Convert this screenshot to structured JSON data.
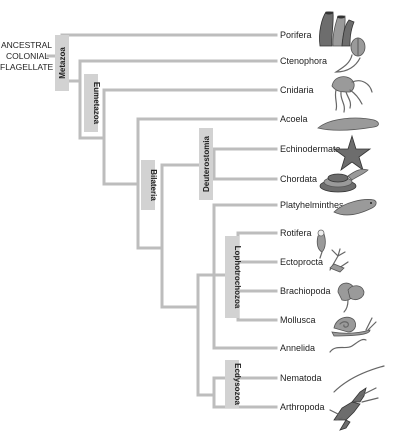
{
  "root": {
    "lines": [
      "ANCESTRAL",
      "COLONIAL",
      "FLAGELLATE"
    ]
  },
  "clades": {
    "metazoa": "Metazoa",
    "eumetazoa": "Eumetazoa",
    "bilateria": "Bilateria",
    "deuterostomia": "Deuterostomia",
    "lophotrochozoa": "Lophotrochozoa",
    "ecdysozoa": "Ecdysozoa"
  },
  "taxa": [
    {
      "label": "Porifera",
      "icon": "sponge-icon"
    },
    {
      "label": "Ctenophora",
      "icon": "comb-jelly-icon"
    },
    {
      "label": "Cnidaria",
      "icon": "jellyfish-icon"
    },
    {
      "label": "Acoela",
      "icon": "acoel-worm-icon"
    },
    {
      "label": "Echinodermata",
      "icon": "sea-star-icon"
    },
    {
      "label": "Chordata",
      "icon": "snake-icon"
    },
    {
      "label": "Platyhelminthes",
      "icon": "flatworm-icon"
    },
    {
      "label": "Rotifera",
      "icon": "rotifer-icon"
    },
    {
      "label": "Ectoprocta",
      "icon": "bryozoan-icon"
    },
    {
      "label": "Brachiopoda",
      "icon": "lamp-shell-icon"
    },
    {
      "label": "Mollusca",
      "icon": "snail-icon"
    },
    {
      "label": "Annelida",
      "icon": "earthworm-icon"
    },
    {
      "label": "Nematoda",
      "icon": "roundworm-icon"
    },
    {
      "label": "Arthropoda",
      "icon": "lobster-icon"
    }
  ]
}
